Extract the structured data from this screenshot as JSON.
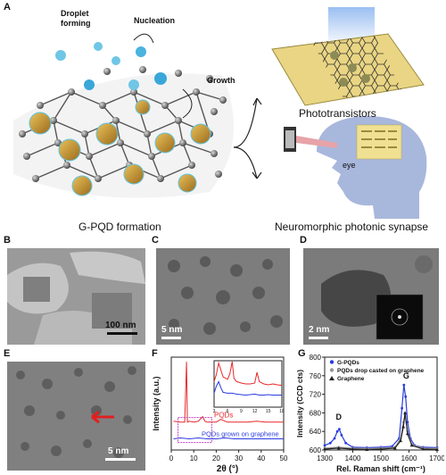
{
  "panels": {
    "A": {
      "label": "A",
      "droplet_forming": "Droplet\nforming",
      "nucleation": "Nucleation",
      "growth": "Growth",
      "formation_caption": "G-PQD formation",
      "phototransistors": "Phototransistors",
      "synapse_caption": "Neuromorphic photonic synapse",
      "eye": "eye"
    },
    "B": {
      "label": "B",
      "scale": "100 nm"
    },
    "C": {
      "label": "C",
      "scale": "5 nm"
    },
    "D": {
      "label": "D",
      "scale": "2 nm"
    },
    "E": {
      "label": "E",
      "scale": "5 nm"
    },
    "F": {
      "label": "F"
    },
    "G": {
      "label": "G"
    }
  },
  "chart_data": [
    {
      "panel": "F",
      "type": "line",
      "xlabel": "2θ (°)",
      "ylabel": "Intensity (a.u.)",
      "xlim": [
        0,
        50
      ],
      "xticks": [
        0,
        10,
        20,
        30,
        40,
        50
      ],
      "grid": false,
      "series": [
        {
          "name": "PQDs",
          "color": "#e8272b",
          "x": [
            1,
            4,
            6,
            6.8,
            7.2,
            8,
            10,
            12,
            14,
            15,
            16,
            20,
            22,
            25,
            28,
            30,
            34,
            38,
            42,
            46,
            50
          ],
          "y": [
            0.31,
            0.3,
            0.3,
            0.95,
            0.3,
            0.31,
            0.3,
            0.31,
            0.36,
            0.31,
            0.3,
            0.3,
            0.33,
            0.3,
            0.3,
            0.3,
            0.3,
            0.31,
            0.3,
            0.3,
            0.3
          ]
        },
        {
          "name": "PQDs grown on graphene",
          "color": "#2a3be0",
          "x": [
            1,
            4,
            8,
            12,
            16,
            20,
            24,
            28,
            32,
            36,
            40,
            44,
            48,
            50
          ],
          "y": [
            0.12,
            0.13,
            0.12,
            0.13,
            0.12,
            0.12,
            0.13,
            0.12,
            0.12,
            0.12,
            0.12,
            0.12,
            0.12,
            0.12
          ]
        }
      ],
      "inset": {
        "xlim": [
          3,
          18
        ],
        "xticks": [
          3,
          6,
          9,
          12,
          15,
          18
        ],
        "series": [
          {
            "name": "PQDs",
            "color": "#e8272b",
            "x": [
              3,
              3.5,
              4,
              4.5,
              5,
              6,
              6.5,
              7,
              7.4,
              8,
              9,
              10,
              11,
              12,
              12.5,
              13,
              14,
              15,
              16,
              17,
              18
            ],
            "y": [
              0.55,
              0.7,
              0.95,
              0.8,
              0.65,
              0.6,
              0.72,
              0.98,
              0.62,
              0.55,
              0.52,
              0.5,
              0.5,
              0.52,
              0.75,
              0.55,
              0.5,
              0.48,
              0.5,
              0.48,
              0.47
            ]
          },
          {
            "name": "PQDs grown on graphene",
            "color": "#2a3be0",
            "x": [
              3,
              3.5,
              4,
              4.5,
              5,
              6,
              7,
              8,
              9,
              10,
              11,
              12,
              13,
              14,
              15,
              16,
              17,
              18
            ],
            "y": [
              0.3,
              0.45,
              0.55,
              0.42,
              0.32,
              0.3,
              0.3,
              0.28,
              0.27,
              0.26,
              0.27,
              0.28,
              0.26,
              0.26,
              0.27,
              0.26,
              0.26,
              0.26
            ]
          }
        ]
      }
    },
    {
      "panel": "G",
      "type": "line",
      "xlabel": "Rel. Raman shift (cm⁻¹)",
      "ylabel": "Intensity (CCD cts)",
      "xlim": [
        1300,
        1700
      ],
      "ylim": [
        600,
        800
      ],
      "xticks": [
        1300,
        1400,
        1500,
        1600,
        1700
      ],
      "yticks": [
        600,
        640,
        680,
        720,
        760,
        800
      ],
      "legend_position": "top-left",
      "grid": false,
      "peak_labels": [
        {
          "text": "D",
          "x": 1350,
          "y": 662
        },
        {
          "text": "G",
          "x": 1590,
          "y": 750
        }
      ],
      "series": [
        {
          "name": "G-PQDs",
          "color": "#2a3be0",
          "marker": "circle",
          "x": [
            1300,
            1320,
            1335,
            1345,
            1352,
            1360,
            1375,
            1400,
            1450,
            1500,
            1540,
            1565,
            1575,
            1582,
            1588,
            1595,
            1605,
            1620,
            1650,
            1700
          ],
          "y": [
            610,
            615,
            625,
            640,
            645,
            632,
            615,
            606,
            605,
            606,
            608,
            625,
            690,
            740,
            715,
            660,
            625,
            610,
            606,
            605
          ]
        },
        {
          "name": "PQDs drop casted on graphene",
          "color": "#999999",
          "marker": "circle",
          "x": [
            1300,
            1350,
            1400,
            1450,
            1500,
            1550,
            1570,
            1580,
            1586,
            1595,
            1610,
            1650,
            1700
          ],
          "y": [
            604,
            606,
            604,
            603,
            604,
            606,
            625,
            660,
            675,
            640,
            612,
            604,
            603
          ]
        },
        {
          "name": "Graphene",
          "color": "#222222",
          "marker": "triangle",
          "x": [
            1300,
            1350,
            1400,
            1450,
            1500,
            1550,
            1570,
            1580,
            1586,
            1595,
            1610,
            1650,
            1700
          ],
          "y": [
            602,
            604,
            602,
            601,
            602,
            604,
            620,
            650,
            680,
            635,
            610,
            602,
            601
          ]
        }
      ]
    }
  ]
}
